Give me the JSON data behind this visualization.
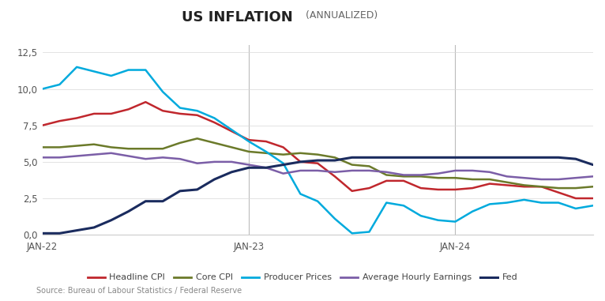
{
  "title_main": "US INFLATION",
  "title_sub": "(ANNUALIZED)",
  "source": "Source: Bureau of Labour Statistics / Federal Reserve",
  "ylim": [
    0,
    13
  ],
  "yticks": [
    0.0,
    2.5,
    5.0,
    7.5,
    10.0,
    12.5
  ],
  "ytick_labels": [
    "0,0",
    "2,5",
    "5,0",
    "7,5",
    "10,0",
    "12,5"
  ],
  "vlines": [
    12,
    24
  ],
  "xtick_positions": [
    0,
    12,
    24
  ],
  "xtick_labels": [
    "JAN-22",
    "JAN-23",
    "JAN-24"
  ],
  "colors": {
    "headline_cpi": "#c0272d",
    "core_cpi": "#6b7a2a",
    "producer_prices": "#00aadd",
    "avg_hourly": "#7b5ea7",
    "fed": "#1a2b5e"
  },
  "headline_cpi": [
    7.5,
    7.8,
    8.0,
    8.3,
    8.3,
    8.6,
    9.1,
    8.5,
    8.3,
    8.2,
    7.7,
    7.1,
    6.5,
    6.4,
    6.0,
    5.0,
    4.9,
    4.0,
    3.0,
    3.2,
    3.7,
    3.7,
    3.2,
    3.1,
    3.1,
    3.2,
    3.5,
    3.4,
    3.3,
    3.3,
    2.9,
    2.5,
    2.5
  ],
  "core_cpi": [
    6.0,
    6.0,
    6.1,
    6.2,
    6.0,
    5.9,
    5.9,
    5.9,
    6.3,
    6.6,
    6.3,
    6.0,
    5.7,
    5.6,
    5.5,
    5.6,
    5.5,
    5.3,
    4.8,
    4.7,
    4.1,
    4.0,
    4.0,
    3.9,
    3.9,
    3.8,
    3.8,
    3.6,
    3.4,
    3.3,
    3.2,
    3.2,
    3.3
  ],
  "producer_prices": [
    10.0,
    10.3,
    11.5,
    11.2,
    10.9,
    11.3,
    11.3,
    9.8,
    8.7,
    8.5,
    8.0,
    7.2,
    6.4,
    5.7,
    4.9,
    2.8,
    2.3,
    1.1,
    0.1,
    0.2,
    2.2,
    2.0,
    1.3,
    1.0,
    0.9,
    1.6,
    2.1,
    2.2,
    2.4,
    2.2,
    2.2,
    1.8,
    2.0
  ],
  "avg_hourly": [
    5.3,
    5.3,
    5.4,
    5.5,
    5.6,
    5.4,
    5.2,
    5.3,
    5.2,
    4.9,
    5.0,
    5.0,
    4.8,
    4.6,
    4.2,
    4.4,
    4.4,
    4.3,
    4.4,
    4.4,
    4.3,
    4.1,
    4.1,
    4.2,
    4.4,
    4.4,
    4.3,
    4.0,
    3.9,
    3.8,
    3.8,
    3.9,
    4.0
  ],
  "fed": [
    0.1,
    0.1,
    0.3,
    0.5,
    1.0,
    1.6,
    2.3,
    2.3,
    3.0,
    3.1,
    3.8,
    4.3,
    4.6,
    4.6,
    4.8,
    5.0,
    5.1,
    5.1,
    5.3,
    5.3,
    5.3,
    5.3,
    5.3,
    5.3,
    5.3,
    5.3,
    5.3,
    5.3,
    5.3,
    5.3,
    5.3,
    5.2,
    4.8
  ],
  "background_color": "#ffffff",
  "grid_color": "#d8d8d8",
  "legend_labels": [
    "Headline CPI",
    "Core CPI",
    "Producer Prices",
    "Average Hourly Earnings",
    "Fed"
  ]
}
